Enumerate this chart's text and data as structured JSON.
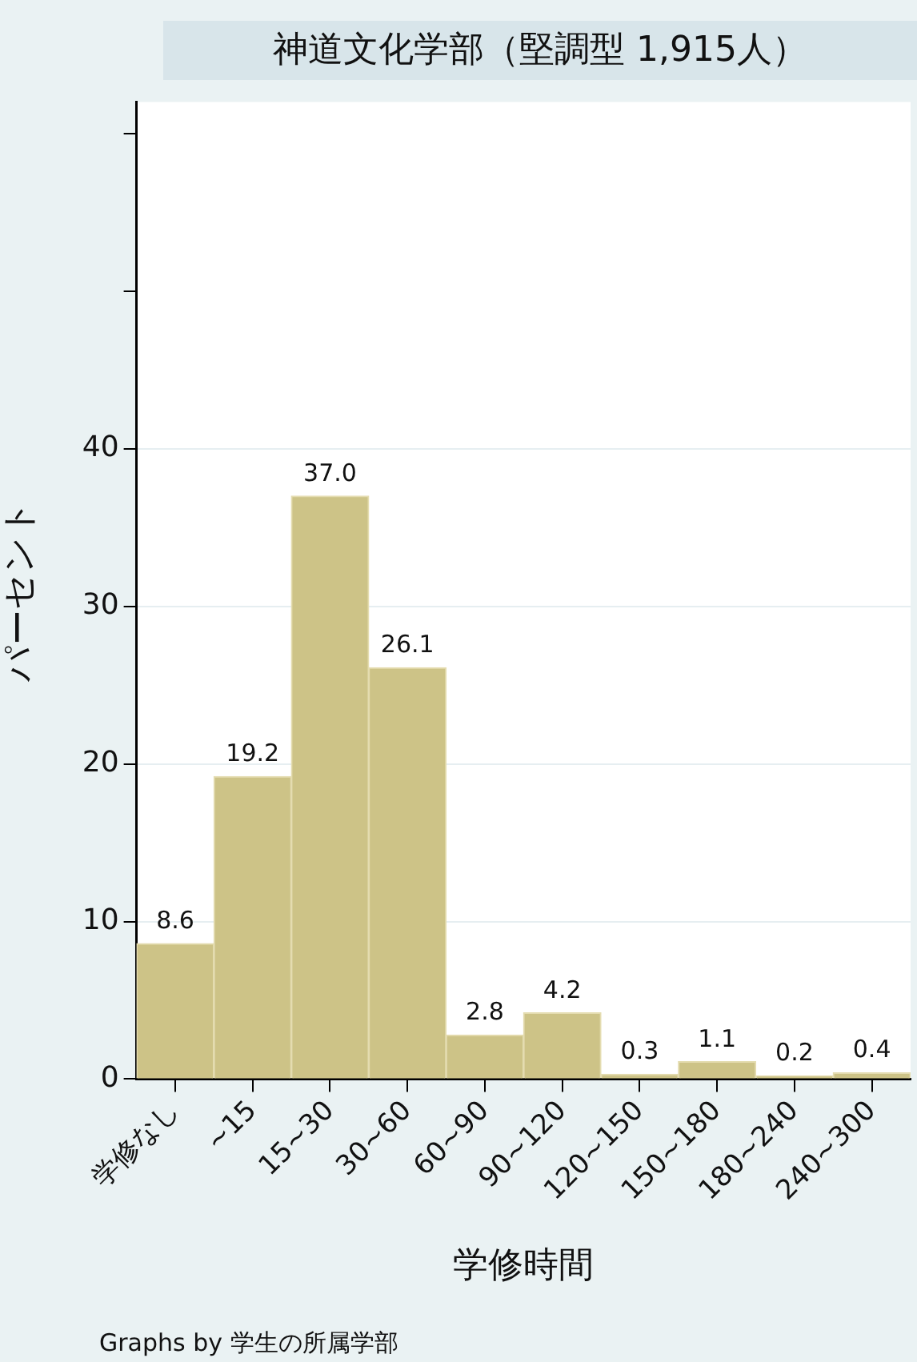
{
  "chart_data": {
    "type": "bar",
    "title": "神道文化学部（堅調型 1,915人）",
    "xlabel": "学修時間",
    "ylabel": "パーセント",
    "annotations": [
      "Graphs by 学生の所属学部"
    ],
    "categories": [
      "学修なし",
      "~15",
      "15~30",
      "30~60",
      "60~90",
      "90~120",
      "120~150",
      "150~180",
      "180~240",
      "240~300"
    ],
    "values": [
      8.6,
      19.2,
      37.0,
      26.1,
      2.8,
      4.2,
      0.3,
      1.1,
      0.2,
      0.4
    ],
    "value_labels": [
      "8.6",
      "19.2",
      "37.0",
      "26.1",
      "2.8",
      "4.2",
      "0.3",
      "1.1",
      "0.2",
      "0.4"
    ],
    "color": "#cdc387",
    "ylim": [
      0,
      62
    ],
    "yticks": [
      0,
      10,
      20,
      30,
      40,
      {
        "value": 50,
        "label": null
      },
      {
        "value": 60,
        "label": null
      }
    ],
    "grid": "y",
    "legend": false
  }
}
